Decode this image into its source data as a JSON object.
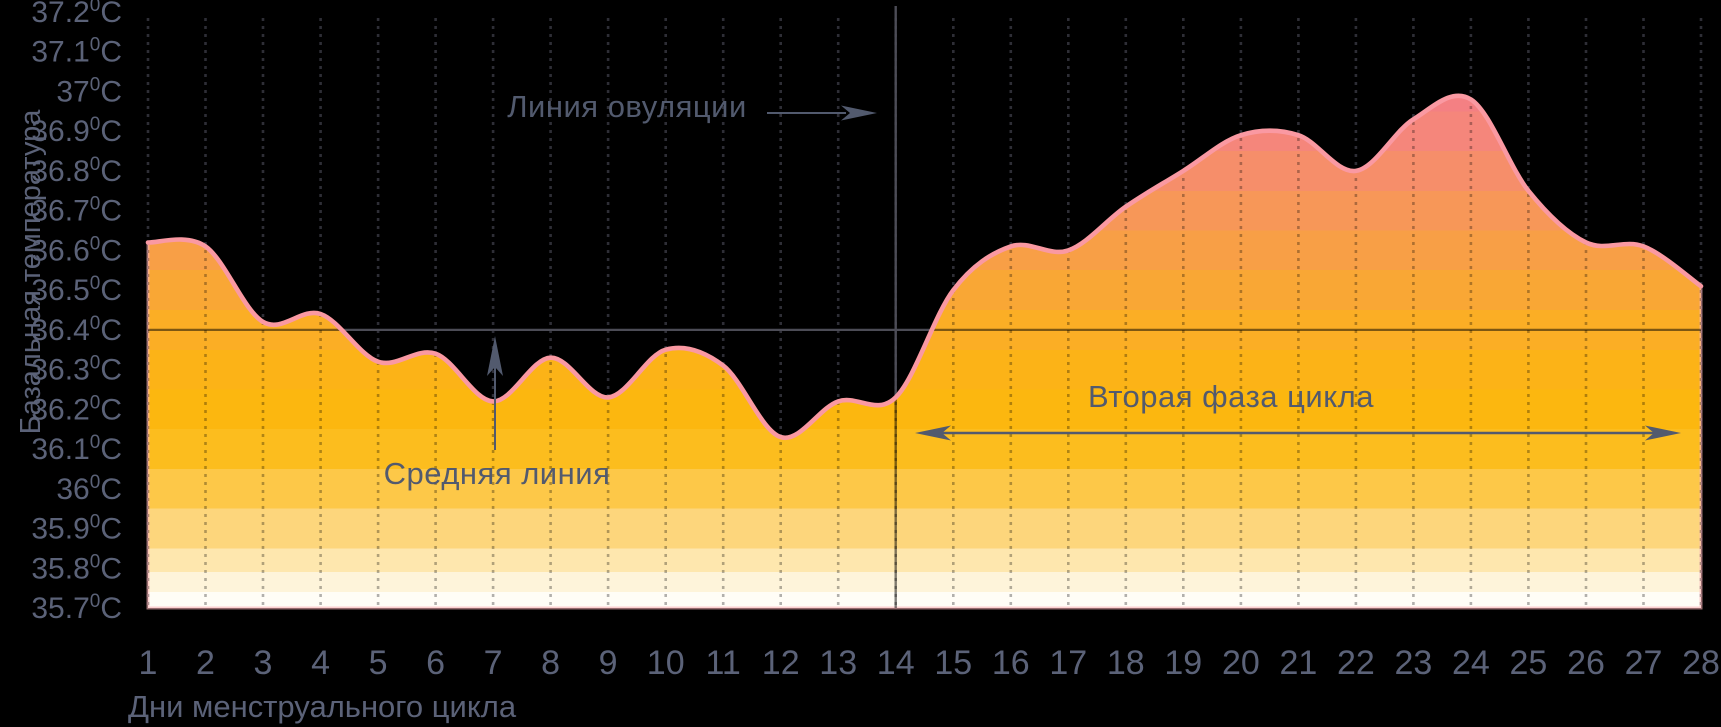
{
  "chart_data": {
    "type": "area",
    "title": "",
    "xlabel": "Дни менструального цикла",
    "ylabel": "Базальная температура",
    "x": [
      1,
      2,
      3,
      4,
      5,
      6,
      7,
      8,
      9,
      10,
      11,
      12,
      13,
      14,
      15,
      16,
      17,
      18,
      19,
      20,
      21,
      22,
      23,
      24,
      25,
      26,
      27,
      28
    ],
    "series": [
      {
        "name": "Базальная температура",
        "values": [
          36.62,
          36.61,
          36.42,
          36.44,
          36.32,
          36.34,
          36.22,
          36.33,
          36.23,
          36.35,
          36.31,
          36.13,
          36.22,
          36.23,
          36.5,
          36.61,
          36.6,
          36.71,
          36.8,
          36.89,
          36.89,
          36.8,
          36.93,
          36.98,
          36.75,
          36.62,
          36.61,
          36.51
        ]
      }
    ],
    "xlim": [
      1,
      28
    ],
    "ylim": [
      35.7,
      37.2
    ],
    "ytick_values": [
      37.2,
      37.1,
      37.0,
      36.9,
      36.8,
      36.7,
      36.6,
      36.5,
      36.4,
      36.3,
      36.2,
      36.1,
      36.0,
      35.9,
      35.8,
      35.7
    ],
    "ytick_labels": [
      "37.2⁰C",
      "37.1⁰C",
      "37⁰C",
      "36.9⁰C",
      "36.8⁰C",
      "36.7⁰C",
      "36.6⁰C",
      "36.5⁰C",
      "36.4⁰C",
      "36.3⁰C",
      "36.2⁰C",
      "36.1⁰C",
      "36⁰C",
      "35.9⁰C",
      "35.8⁰C",
      "35.7⁰C"
    ],
    "xtick_labels": [
      "1",
      "2",
      "3",
      "4",
      "5",
      "6",
      "7",
      "8",
      "9",
      "10",
      "11",
      "12",
      "13",
      "14",
      "15",
      "16",
      "17",
      "18",
      "19",
      "20",
      "21",
      "22",
      "23",
      "24",
      "25",
      "26",
      "27",
      "28"
    ],
    "grid": {
      "vertical_dotted": true,
      "horizontal": false
    },
    "legend": null,
    "reference_lines": {
      "ovulation_line": {
        "orientation": "vertical",
        "day": 14
      },
      "middle_line": {
        "orientation": "horizontal",
        "temp": 36.4
      }
    },
    "annotations": {
      "ovulation": {
        "label": "Линия овуляции",
        "arrow": "right"
      },
      "middle_line": {
        "label": "Средняя линия",
        "arrow": "up"
      },
      "phase2": {
        "label": "Вторая фаза цикла",
        "arrow": "double-horizontal",
        "span_days": [
          14.3,
          27.7
        ]
      }
    }
  },
  "colors": {
    "background": "#000000",
    "axis_text": "#5b6278",
    "annotation_text": "#525a6e",
    "curve_stroke": "#fa99a2",
    "area_edge_stroke": "rgba(250,178,184,0.6)",
    "grid_dot_dark": "#2e2e36",
    "grid_dot_on_area": "rgba(0,0,0,0.30)",
    "ref_line_dark": "#4c4c56",
    "ref_line_on_area": "rgba(0,0,0,0.5)",
    "fill_bands": [
      {
        "t": 37.2,
        "c": "#f48083"
      },
      {
        "t": 36.95,
        "c": "#f5867b"
      },
      {
        "t": 36.85,
        "c": "#f68e6a"
      },
      {
        "t": 36.75,
        "c": "#f79758"
      },
      {
        "t": 36.65,
        "c": "#f89f46"
      },
      {
        "t": 36.55,
        "c": "#f9a735"
      },
      {
        "t": 36.45,
        "c": "#fbae25"
      },
      {
        "t": 36.35,
        "c": "#fcb317"
      },
      {
        "t": 36.25,
        "c": "#fcb70f"
      },
      {
        "t": 36.15,
        "c": "#fcbd1e"
      },
      {
        "t": 36.05,
        "c": "#fdc848"
      },
      {
        "t": 35.95,
        "c": "#fdd67c"
      },
      {
        "t": 35.85,
        "c": "#fee7ae"
      },
      {
        "t": 35.79,
        "c": "#fef4da"
      },
      {
        "t": 35.74,
        "c": "#fffdf6"
      }
    ]
  }
}
